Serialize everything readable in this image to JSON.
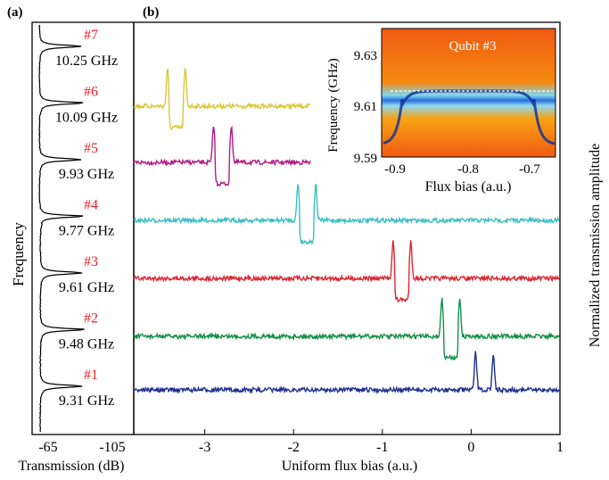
{
  "panel_a": {
    "label": "(a)",
    "ylabel": "Frequency",
    "xlabel": "Transmission (dB)",
    "xticks": [
      "-65",
      "-105"
    ],
    "resonators": [
      {
        "id": "#7",
        "freq": "10.25 GHz"
      },
      {
        "id": "#6",
        "freq": "10.09 GHz"
      },
      {
        "id": "#5",
        "freq": "9.93 GHz"
      },
      {
        "id": "#4",
        "freq": "9.77 GHz"
      },
      {
        "id": "#3",
        "freq": "9.61 GHz"
      },
      {
        "id": "#2",
        "freq": "9.48 GHz"
      },
      {
        "id": "#1",
        "freq": "9.31 GHz"
      }
    ]
  },
  "panel_b": {
    "label": "(b)",
    "xlabel": "Uniform flux bias (a.u.)",
    "ylabel": "Normalized transmission amplitude",
    "xticks": [
      "-3",
      "-2",
      "-1",
      "0",
      "1"
    ]
  },
  "inset": {
    "title": "Qubit #3",
    "xlabel": "Flux bias (a.u.)",
    "ylabel": "Frequency (GHz)",
    "xticks": [
      "-0.9",
      "-0.8",
      "-0.7"
    ],
    "yticks": [
      "9.63",
      "9.61",
      "9.59"
    ]
  },
  "chart_data": {
    "type": "line",
    "x_range": [
      -3.8,
      1.0
    ],
    "series": [
      {
        "color": "#d8c83a",
        "x_start": -3.8,
        "x_end": -1.8,
        "peaks": [
          -3.42,
          -3.22
        ],
        "dip": true
      },
      {
        "color": "#b21c86",
        "x_start": -3.8,
        "x_end": -1.8,
        "peaks": [
          -2.9,
          -2.7
        ],
        "dip": true
      },
      {
        "color": "#3bbfc3",
        "x_start": -3.8,
        "x_end": 1.0,
        "peaks": [
          -1.95,
          -1.75
        ],
        "dip": true
      },
      {
        "color": "#e02430",
        "x_start": -3.8,
        "x_end": 1.0,
        "peaks": [
          -0.88,
          -0.68
        ],
        "dip": true
      },
      {
        "color": "#14904a",
        "x_start": -3.8,
        "x_end": 1.0,
        "peaks": [
          -0.33,
          -0.13
        ],
        "dip": true
      },
      {
        "color": "#1f2f90",
        "x_start": -3.8,
        "x_end": 1.0,
        "peaks": [
          0.05,
          0.25
        ],
        "dip": false
      }
    ]
  }
}
